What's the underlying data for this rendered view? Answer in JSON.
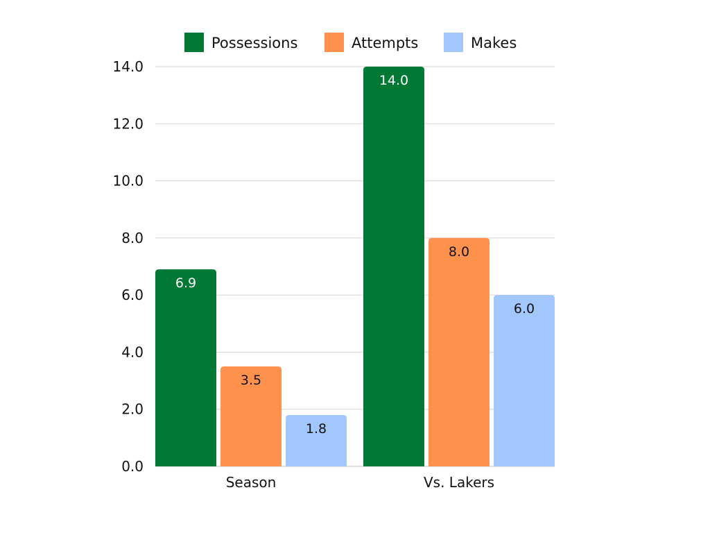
{
  "chart_data": {
    "type": "bar",
    "categories": [
      "Season",
      "Vs. Lakers"
    ],
    "series": [
      {
        "name": "Possessions",
        "values": [
          6.9,
          14.0
        ],
        "color": "#017834",
        "label_color": "#ffffff"
      },
      {
        "name": "Attempts",
        "values": [
          3.5,
          8.0
        ],
        "color": "#fe914c",
        "label_color": "#111111"
      },
      {
        "name": "Makes",
        "values": [
          1.8,
          6.0
        ],
        "color": "#a2c7fc",
        "label_color": "#111111"
      }
    ],
    "data_labels": [
      [
        "6.9",
        "14.0"
      ],
      [
        "3.5",
        "8.0"
      ],
      [
        "1.8",
        "6.0"
      ]
    ],
    "y_ticks": [
      "0.0",
      "2.0",
      "4.0",
      "6.0",
      "8.0",
      "10.0",
      "12.0",
      "14.0"
    ],
    "title": "",
    "xlabel": "",
    "ylabel": "",
    "ylim": [
      0,
      14
    ],
    "grid": true,
    "legend": "top-center"
  }
}
